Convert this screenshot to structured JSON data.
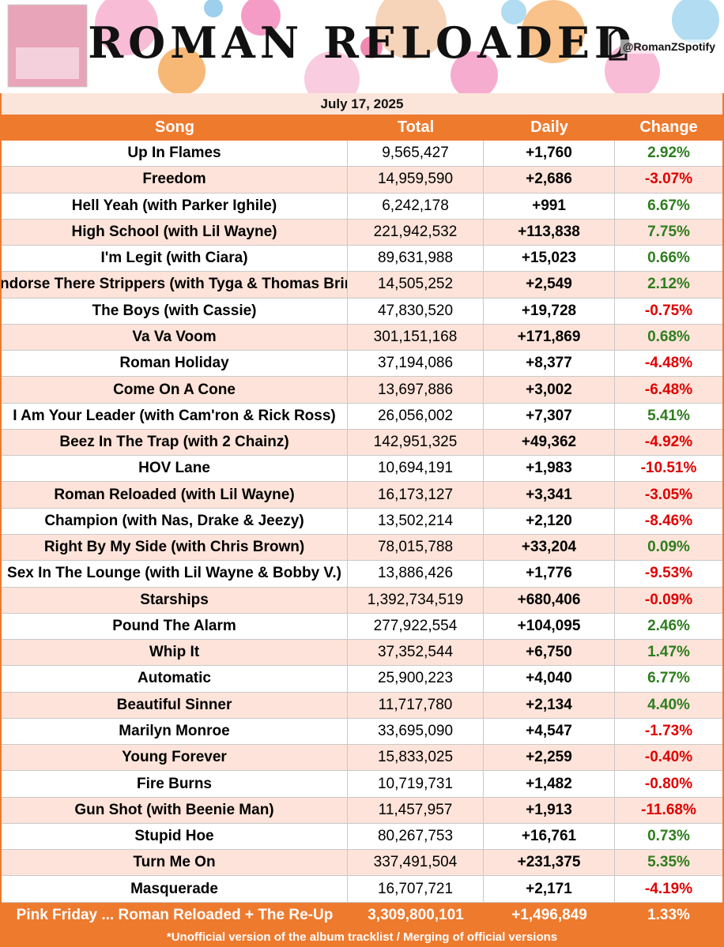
{
  "header": {
    "title": "ROMAN RELOADED",
    "handle": "@RomanZSpotify",
    "date": "July 17, 2025"
  },
  "table": {
    "columns": [
      "Song",
      "Total",
      "Daily",
      "Change"
    ],
    "rows": [
      [
        "Up In Flames",
        "9,565,427",
        "+1,760",
        "2.92%"
      ],
      [
        "Freedom",
        "14,959,590",
        "+2,686",
        "-3.07%"
      ],
      [
        "Hell Yeah (with Parker Ighile)",
        "6,242,178",
        "+991",
        "6.67%"
      ],
      [
        "High School (with Lil Wayne)",
        "221,942,532",
        "+113,838",
        "7.75%"
      ],
      [
        "I'm Legit (with Ciara)",
        "89,631,988",
        "+15,023",
        "0.66%"
      ],
      [
        "I Endorse There Strippers (with Tyga & Thomas Brinx)",
        "14,505,252",
        "+2,549",
        "2.12%"
      ],
      [
        "The Boys (with Cassie)",
        "47,830,520",
        "+19,728",
        "-0.75%"
      ],
      [
        "Va Va Voom",
        "301,151,168",
        "+171,869",
        "0.68%"
      ],
      [
        "Roman Holiday",
        "37,194,086",
        "+8,377",
        "-4.48%"
      ],
      [
        "Come On A Cone",
        "13,697,886",
        "+3,002",
        "-6.48%"
      ],
      [
        "I Am Your Leader (with Cam'ron & Rick Ross)",
        "26,056,002",
        "+7,307",
        "5.41%"
      ],
      [
        "Beez In The Trap (with 2 Chainz)",
        "142,951,325",
        "+49,362",
        "-4.92%"
      ],
      [
        "HOV Lane",
        "10,694,191",
        "+1,983",
        "-10.51%"
      ],
      [
        "Roman Reloaded (with Lil Wayne)",
        "16,173,127",
        "+3,341",
        "-3.05%"
      ],
      [
        "Champion (with Nas, Drake & Jeezy)",
        "13,502,214",
        "+2,120",
        "-8.46%"
      ],
      [
        "Right By My Side (with Chris Brown)",
        "78,015,788",
        "+33,204",
        "0.09%"
      ],
      [
        "Sex In The Lounge (with Lil Wayne & Bobby V.)",
        "13,886,426",
        "+1,776",
        "-9.53%"
      ],
      [
        "Starships",
        "1,392,734,519",
        "+680,406",
        "-0.09%"
      ],
      [
        "Pound The Alarm",
        "277,922,554",
        "+104,095",
        "2.46%"
      ],
      [
        "Whip It",
        "37,352,544",
        "+6,750",
        "1.47%"
      ],
      [
        "Automatic",
        "25,900,223",
        "+4,040",
        "6.77%"
      ],
      [
        "Beautiful Sinner",
        "11,717,780",
        "+2,134",
        "4.40%"
      ],
      [
        "Marilyn Monroe",
        "33,695,090",
        "+4,547",
        "-1.73%"
      ],
      [
        "Young Forever",
        "15,833,025",
        "+2,259",
        "-0.40%"
      ],
      [
        "Fire Burns",
        "10,719,731",
        "+1,482",
        "-0.80%"
      ],
      [
        "Gun Shot (with Beenie Man)",
        "11,457,957",
        "+1,913",
        "-11.68%"
      ],
      [
        "Stupid Hoe",
        "80,267,753",
        "+16,761",
        "0.73%"
      ],
      [
        "Turn Me On",
        "337,491,504",
        "+231,375",
        "5.35%"
      ],
      [
        "Masquerade",
        "16,707,721",
        "+2,171",
        "-4.19%"
      ]
    ],
    "total": [
      "Pink Friday ... Roman Reloaded + The Re-Up",
      "3,309,800,101",
      "+1,496,849",
      "1.33%"
    ],
    "footnote": "*Unofficial version of the album tracklist / Merging of official versions"
  }
}
